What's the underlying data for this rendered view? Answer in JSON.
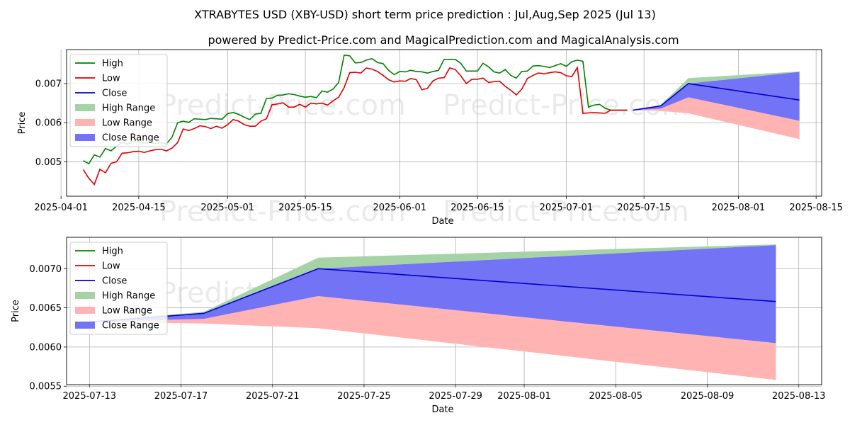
{
  "title": "XTRABYTES USD (XBY-USD) short term price prediction : Jul,Aug,Sep 2025 (Jul 13)",
  "subtitle": "powered by Predict-Price.com and MagicalPrediction.com and MagicalAnalysis.com",
  "watermark": "Predict-Price.com",
  "colors": {
    "high": "#008000",
    "low": "#e00000",
    "close": "#0000cc",
    "high_range": "#a6d3a6",
    "low_range": "#ffb3b3",
    "close_range": "#7373f5"
  },
  "chart_data": [
    {
      "type": "line",
      "xlabel": "Date",
      "ylabel": "Price",
      "xlim": [
        "2025-04-02",
        "2025-08-16"
      ],
      "ylim": [
        0.00412,
        0.00787
      ],
      "x_ticks": [
        "2025-04-01",
        "2025-04-15",
        "2025-05-01",
        "2025-05-15",
        "2025-06-01",
        "2025-06-15",
        "2025-07-01",
        "2025-07-15",
        "2025-08-01",
        "2025-08-15"
      ],
      "y_ticks": [
        "0.005",
        "0.006",
        "0.007"
      ],
      "legend": [
        "High",
        "Low",
        "Close",
        "High Range",
        "Low Range",
        "Close Range"
      ],
      "legend_position": "top-left",
      "grid": true,
      "history_start": "2025-04-05",
      "high": [
        0.00503,
        0.00495,
        0.00518,
        0.00512,
        0.00534,
        0.00528,
        0.0054,
        0.0055,
        0.00545,
        0.00552,
        0.0055,
        0.00548,
        0.00549,
        0.00547,
        0.00549,
        0.00546,
        0.00563,
        0.006,
        0.00604,
        0.00601,
        0.0061,
        0.00609,
        0.00608,
        0.00611,
        0.0061,
        0.00609,
        0.00623,
        0.00626,
        0.00621,
        0.00614,
        0.00608,
        0.00622,
        0.00624,
        0.00662,
        0.00663,
        0.0067,
        0.00671,
        0.00674,
        0.00672,
        0.00668,
        0.00665,
        0.00667,
        0.00664,
        0.00681,
        0.00678,
        0.00686,
        0.00703,
        0.00773,
        0.00771,
        0.00753,
        0.00754,
        0.0076,
        0.00764,
        0.00754,
        0.00751,
        0.00734,
        0.00723,
        0.00731,
        0.0073,
        0.00734,
        0.00731,
        0.0073,
        0.00727,
        0.00731,
        0.00734,
        0.00762,
        0.00762,
        0.00762,
        0.00752,
        0.00732,
        0.00732,
        0.00732,
        0.00752,
        0.00743,
        0.0073,
        0.00727,
        0.00736,
        0.00721,
        0.00714,
        0.00731,
        0.00732,
        0.00745,
        0.00746,
        0.00744,
        0.00741,
        0.00746,
        0.00751,
        0.00744,
        0.00756,
        0.0076,
        0.00757,
        0.0064,
        0.00645,
        0.00647,
        0.00637,
        0.00632,
        0.00632,
        0.00632,
        0.00632
      ],
      "low": [
        0.0048,
        0.00458,
        0.00442,
        0.00481,
        0.00472,
        0.00496,
        0.005,
        0.00522,
        0.00523,
        0.00526,
        0.00527,
        0.00524,
        0.00528,
        0.00531,
        0.00532,
        0.00528,
        0.00535,
        0.00549,
        0.00584,
        0.0058,
        0.00585,
        0.00592,
        0.0059,
        0.00585,
        0.00591,
        0.00586,
        0.00595,
        0.00608,
        0.00604,
        0.00595,
        0.00591,
        0.00591,
        0.00604,
        0.0061,
        0.00646,
        0.00648,
        0.00651,
        0.0064,
        0.0064,
        0.00647,
        0.0064,
        0.0065,
        0.00648,
        0.0065,
        0.00645,
        0.00656,
        0.00665,
        0.0069,
        0.00728,
        0.00729,
        0.00727,
        0.0074,
        0.00737,
        0.00731,
        0.00721,
        0.0071,
        0.00704,
        0.00707,
        0.00706,
        0.00713,
        0.0071,
        0.00684,
        0.00688,
        0.00707,
        0.00714,
        0.00715,
        0.0074,
        0.00736,
        0.0072,
        0.007,
        0.00711,
        0.00711,
        0.00714,
        0.00703,
        0.00705,
        0.00706,
        0.00693,
        0.00683,
        0.00671,
        0.00686,
        0.00713,
        0.00721,
        0.00727,
        0.00725,
        0.00728,
        0.0073,
        0.00728,
        0.0072,
        0.00718,
        0.00741,
        0.00624,
        0.00625,
        0.00626,
        0.00625,
        0.00624,
        0.00632,
        0.00632,
        0.00632,
        0.00632
      ],
      "forecast": {
        "dates": [
          "2025-07-13",
          "2025-07-18",
          "2025-07-23",
          "2025-08-12"
        ],
        "close": [
          0.00632,
          0.00643,
          0.007,
          0.00658
        ],
        "close_range": [
          [
            0.00632,
            0.00632
          ],
          [
            0.00636,
            0.00643
          ],
          [
            0.00665,
            0.007
          ],
          [
            0.00605,
            0.0073
          ]
        ],
        "high_range": [
          [
            0.00632,
            0.00632
          ],
          [
            0.00643,
            0.00645
          ],
          [
            0.007,
            0.00714
          ],
          [
            0.0073,
            0.00731
          ]
        ],
        "low_range": [
          [
            0.00632,
            0.00632
          ],
          [
            0.0063,
            0.00636
          ],
          [
            0.00624,
            0.00665
          ],
          [
            0.00558,
            0.00605
          ]
        ]
      }
    },
    {
      "type": "line",
      "xlabel": "Date",
      "ylabel": "Price",
      "xlim": [
        "2025-07-12",
        "2025-08-14"
      ],
      "ylim": [
        0.00552,
        0.0074
      ],
      "x_ticks": [
        "2025-07-13",
        "2025-07-17",
        "2025-07-21",
        "2025-07-25",
        "2025-07-29",
        "2025-08-01",
        "2025-08-05",
        "2025-08-09",
        "2025-08-13"
      ],
      "y_ticks": [
        "0.0055",
        "0.0060",
        "0.0065",
        "0.0070"
      ],
      "legend": [
        "High",
        "Low",
        "Close",
        "High Range",
        "Low Range",
        "Close Range"
      ],
      "legend_position": "top-left",
      "grid": true,
      "forecast_ref": 0
    }
  ]
}
